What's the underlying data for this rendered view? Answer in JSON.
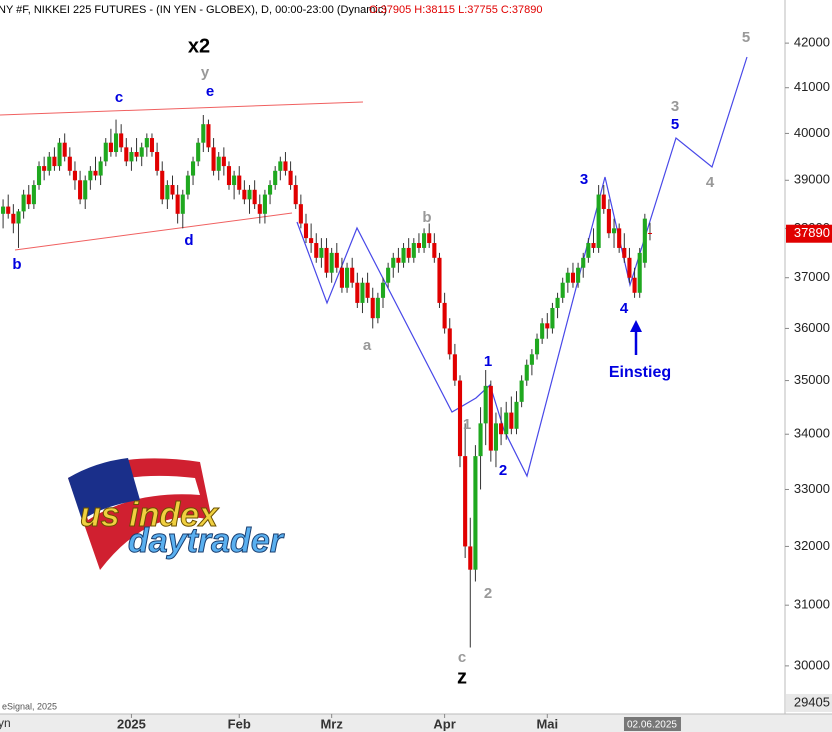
{
  "chart_data": {
    "type": "candlestick",
    "title": "NY #F, NIKKEI 225 FUTURES - (IN YEN - GLOBEX), D, 00:00-23:00 (Dynamic)",
    "ohlc_text": "O:37905 H:38115 L:37755 C:37890",
    "up_color": "#1fa81f",
    "down_color": "#e00000",
    "log_scale": true,
    "ylim": [
      29230,
      42990
    ],
    "yticks": [
      30000,
      31000,
      32000,
      33000,
      34000,
      35000,
      36000,
      37000,
      38000,
      39000,
      40000,
      41000,
      42000
    ],
    "xlim": [
      -0.6,
      152.3
    ],
    "xticks": [
      {
        "value": 25,
        "label": "2025"
      },
      {
        "value": 46,
        "label": "Feb"
      },
      {
        "value": 64,
        "label": "Mrz"
      },
      {
        "value": 86,
        "label": "Apr"
      },
      {
        "value": 106,
        "label": "Mai"
      }
    ],
    "cursor_date": {
      "value": 126,
      "label": "02.06.2025"
    },
    "price_labels": [
      {
        "value": 37890,
        "color": "#e00000"
      },
      {
        "value": 29405,
        "color": "#e8e8e8"
      }
    ],
    "candles": [
      [
        38300,
        38600,
        38000,
        38450
      ],
      [
        38450,
        38700,
        38200,
        38300
      ],
      [
        38300,
        38500,
        37900,
        38100
      ],
      [
        38100,
        38400,
        37600,
        38350
      ],
      [
        38350,
        38800,
        38200,
        38700
      ],
      [
        38700,
        38900,
        38400,
        38500
      ],
      [
        38500,
        39000,
        38400,
        38900
      ],
      [
        38900,
        39400,
        38800,
        39300
      ],
      [
        39300,
        39500,
        39000,
        39200
      ],
      [
        39200,
        39600,
        39100,
        39500
      ],
      [
        39500,
        39700,
        39200,
        39300
      ],
      [
        39300,
        39900,
        39200,
        39800
      ],
      [
        39800,
        40000,
        39400,
        39500
      ],
      [
        39500,
        39700,
        39100,
        39200
      ],
      [
        39200,
        39400,
        38800,
        39000
      ],
      [
        39000,
        39200,
        38500,
        38600
      ],
      [
        38600,
        39100,
        38400,
        39000
      ],
      [
        39000,
        39300,
        38800,
        39200
      ],
      [
        39200,
        39500,
        39000,
        39100
      ],
      [
        39100,
        39500,
        38900,
        39400
      ],
      [
        39400,
        39900,
        39300,
        39800
      ],
      [
        39800,
        40100,
        39500,
        39600
      ],
      [
        39600,
        40300,
        39500,
        40000
      ],
      [
        40000,
        40200,
        39600,
        39700
      ],
      [
        39700,
        39900,
        39300,
        39400
      ],
      [
        39400,
        39700,
        39200,
        39600
      ],
      [
        39600,
        39900,
        39400,
        39500
      ],
      [
        39500,
        39800,
        39300,
        39700
      ],
      [
        39700,
        40000,
        39500,
        39900
      ],
      [
        39900,
        40000,
        39500,
        39600
      ],
      [
        39600,
        39800,
        39100,
        39200
      ],
      [
        39200,
        39400,
        38500,
        38600
      ],
      [
        38600,
        39000,
        38400,
        38900
      ],
      [
        38900,
        39100,
        38600,
        38700
      ],
      [
        38700,
        38900,
        38100,
        38300
      ],
      [
        38300,
        38800,
        38000,
        38700
      ],
      [
        38700,
        39200,
        38600,
        39100
      ],
      [
        39100,
        39500,
        38900,
        39400
      ],
      [
        39400,
        39900,
        39300,
        39800
      ],
      [
        39800,
        40400,
        39600,
        40200
      ],
      [
        40200,
        40300,
        39600,
        39700
      ],
      [
        39700,
        39900,
        39100,
        39200
      ],
      [
        39200,
        39600,
        39000,
        39500
      ],
      [
        39500,
        39700,
        39100,
        39300
      ],
      [
        39300,
        39400,
        38800,
        38900
      ],
      [
        38900,
        39200,
        38600,
        39100
      ],
      [
        39100,
        39300,
        38700,
        38800
      ],
      [
        38800,
        39000,
        38500,
        38600
      ],
      [
        38600,
        38900,
        38300,
        38800
      ],
      [
        38800,
        39000,
        38400,
        38500
      ],
      [
        38500,
        38700,
        38100,
        38300
      ],
      [
        38300,
        38800,
        38100,
        38700
      ],
      [
        38700,
        39000,
        38500,
        38900
      ],
      [
        38900,
        39300,
        38800,
        39200
      ],
      [
        39200,
        39500,
        39000,
        39400
      ],
      [
        39400,
        39600,
        39100,
        39200
      ],
      [
        39200,
        39400,
        38800,
        38900
      ],
      [
        38900,
        39100,
        38400,
        38500
      ],
      [
        38500,
        38700,
        38000,
        38100
      ],
      [
        38100,
        38300,
        37700,
        37800
      ],
      [
        37800,
        38100,
        37500,
        37700
      ],
      [
        37700,
        37900,
        37300,
        37400
      ],
      [
        37400,
        37800,
        37200,
        37600
      ],
      [
        37600,
        37800,
        37000,
        37100
      ],
      [
        37100,
        37600,
        36900,
        37500
      ],
      [
        37500,
        37700,
        37100,
        37200
      ],
      [
        37200,
        37400,
        36700,
        36800
      ],
      [
        36800,
        37300,
        36700,
        37200
      ],
      [
        37200,
        37400,
        36800,
        36900
      ],
      [
        36900,
        37100,
        36400,
        36500
      ],
      [
        36500,
        37000,
        36300,
        36900
      ],
      [
        36900,
        37100,
        36500,
        36600
      ],
      [
        36600,
        36800,
        36000,
        36200
      ],
      [
        36200,
        36700,
        36100,
        36600
      ],
      [
        36600,
        37000,
        36400,
        36900
      ],
      [
        36900,
        37300,
        36800,
        37200
      ],
      [
        37200,
        37500,
        37000,
        37400
      ],
      [
        37400,
        37600,
        37100,
        37300
      ],
      [
        37300,
        37700,
        37200,
        37600
      ],
      [
        37600,
        37800,
        37300,
        37400
      ],
      [
        37400,
        37800,
        37300,
        37700
      ],
      [
        37700,
        37900,
        37500,
        37600
      ],
      [
        37600,
        38000,
        37500,
        37900
      ],
      [
        37900,
        38100,
        37600,
        37700
      ],
      [
        37700,
        37900,
        37300,
        37400
      ],
      [
        37400,
        37500,
        36400,
        36500
      ],
      [
        36500,
        36700,
        35900,
        36000
      ],
      [
        36000,
        36200,
        35400,
        35500
      ],
      [
        35500,
        35700,
        34900,
        35000
      ],
      [
        35000,
        35100,
        33400,
        33600
      ],
      [
        33600,
        34200,
        31800,
        32000
      ],
      [
        32000,
        32500,
        30300,
        31600
      ],
      [
        31600,
        33800,
        31400,
        33600
      ],
      [
        33600,
        34500,
        33000,
        34200
      ],
      [
        34200,
        35200,
        33800,
        34900
      ],
      [
        34900,
        35000,
        33500,
        33700
      ],
      [
        33700,
        34400,
        33400,
        34200
      ],
      [
        34200,
        34500,
        33800,
        34000
      ],
      [
        34000,
        34600,
        33900,
        34400
      ],
      [
        34400,
        34700,
        34000,
        34100
      ],
      [
        34100,
        34800,
        34000,
        34600
      ],
      [
        34600,
        35100,
        34500,
        35000
      ],
      [
        35000,
        35400,
        34900,
        35300
      ],
      [
        35300,
        35600,
        35100,
        35500
      ],
      [
        35500,
        35900,
        35400,
        35800
      ],
      [
        35800,
        36200,
        35700,
        36100
      ],
      [
        36100,
        36300,
        35800,
        36000
      ],
      [
        36000,
        36500,
        35900,
        36400
      ],
      [
        36400,
        36700,
        36200,
        36600
      ],
      [
        36600,
        37000,
        36500,
        36900
      ],
      [
        36900,
        37200,
        36700,
        37100
      ],
      [
        37100,
        37300,
        36800,
        36900
      ],
      [
        36900,
        37300,
        36800,
        37200
      ],
      [
        37200,
        37500,
        37000,
        37400
      ],
      [
        37400,
        37800,
        37300,
        37700
      ],
      [
        37700,
        38000,
        37500,
        37600
      ],
      [
        37600,
        38900,
        37500,
        38700
      ],
      [
        38700,
        38900,
        38300,
        38400
      ],
      [
        38400,
        38600,
        37800,
        37900
      ],
      [
        37900,
        38200,
        37600,
        38000
      ],
      [
        38000,
        38100,
        37500,
        37600
      ],
      [
        37600,
        37900,
        37300,
        37400
      ],
      [
        37400,
        37600,
        36900,
        37000
      ],
      [
        37000,
        37200,
        36600,
        36700
      ],
      [
        36700,
        37600,
        36600,
        37500
      ],
      [
        37300,
        38300,
        37200,
        38200
      ],
      [
        37905,
        38115,
        37755,
        37890
      ]
    ],
    "annotations": [
      "x2",
      "y",
      "c",
      "e",
      "b",
      "d",
      "b",
      "a",
      "c",
      "z",
      "1",
      "1",
      "2",
      "2",
      "3",
      "4",
      "3",
      "5",
      "4",
      "5",
      "Einstieg"
    ],
    "copyright": "eSignal, 2025",
    "corner_text": "yn",
    "logo": [
      "us index",
      "daytrader"
    ]
  }
}
